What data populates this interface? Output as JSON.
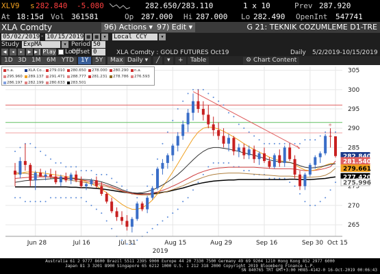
{
  "ticker": {
    "symbol": "XLV9",
    "last_prefix": "s",
    "last": "282.840",
    "change": "-5.080",
    "bid_ask": "282.650/283.110",
    "size": "1 x 10",
    "prev_label": "Prev",
    "prev": "287.920",
    "time_label": "At",
    "time": "18:15d",
    "vol_label": "Vol",
    "vol": "361581",
    "open_label": "Op",
    "open": "287.000",
    "high_label": "Hi",
    "high": "287.000",
    "low_label": "Lo",
    "low": "282.490",
    "oi_label": "OpenInt",
    "oi": "547741"
  },
  "titlebar": {
    "security": "XLA Comdty",
    "actions_label": "Actions",
    "actions_num": "96)",
    "edit_label": "Edit",
    "edit_num": "97)",
    "screen_title": "G 21: TEKNIK COZUMLEME D1-TRE"
  },
  "controls": {
    "start_date": "05/02/2019",
    "end_date": "10/15/2019",
    "currency": "Local CCY",
    "study_label": "Study",
    "study_value": "ExpMA",
    "period_label": "Period",
    "period_value": "50",
    "offset_label": "Offset",
    "offset_value": "0",
    "play_label": "Play",
    "loop_label": "Loop",
    "subtitle": "XLA Comdty : GOLD FUTURES    Oct19",
    "frequency": "Daily",
    "date_range": "5/2/2019-10/15/2019"
  },
  "range_buttons": [
    "1D",
    "3D",
    "1M",
    "6M",
    "YTD",
    "1Y",
    "5Y",
    "Max"
  ],
  "range_selected": "1Y",
  "period_select": "Daily",
  "table_label": "Table",
  "chart_content_label": "Chart Content",
  "legend": [
    {
      "text": "n.a.",
      "color": "#d03030"
    },
    {
      "text": "XLA Co...",
      "color": "#1a3a8a"
    },
    {
      "text": "279.010",
      "color": "#d03030"
    },
    {
      "text": "280.650",
      "color": "#d03030"
    },
    {
      "text": "278.000",
      "color": "#d03030"
    },
    {
      "text": "280.290",
      "color": "#d03030"
    },
    {
      "text": "n.a.",
      "color": "#d03030"
    },
    {
      "text": "295.960",
      "color": "#e08080"
    },
    {
      "text": "289.137",
      "color": "#f0a020"
    },
    {
      "text": "291.471",
      "color": "#e08080"
    },
    {
      "text": "288.777",
      "color": "#e08080"
    },
    {
      "text": "281.231",
      "color": "#d03030"
    },
    {
      "text": "278.786",
      "color": "#8a6a20"
    },
    {
      "text": "276.593",
      "color": "#e08080"
    },
    {
      "text": "286.197",
      "color": "#80a0e0"
    },
    {
      "text": "282.199",
      "color": "#e08080"
    },
    {
      "text": "280.633",
      "color": "#e08080"
    },
    {
      "text": "283.501",
      "color": "#000000"
    }
  ],
  "chart_data": {
    "type": "line",
    "title": "",
    "xlabel": "",
    "ylabel": "",
    "ylim": [
      262,
      306
    ],
    "y_ticks": [
      265,
      270,
      275,
      280,
      285,
      290,
      295,
      300,
      305
    ],
    "x_ticks": [
      "Jun 28",
      "Jul 16",
      "Jul 31",
      "Aug 15",
      "Aug 29",
      "Sep 16",
      "Sep 30",
      "Oct 15"
    ],
    "year_label": "2019",
    "right_labels": [
      {
        "value": 282.84,
        "text": "282.840",
        "bg": "#1a3a8a",
        "fg": "#ffffff"
      },
      {
        "value": 281.54,
        "text": "281.540",
        "bg": "#e06060",
        "fg": "#ffffff"
      },
      {
        "value": 279.661,
        "text": "279.661",
        "bg": "#f0a020",
        "fg": "#000000"
      },
      {
        "value": 277.42,
        "text": "277.420",
        "bg": "#000000",
        "fg": "#ffffff"
      },
      {
        "value": 275.996,
        "text": "275.996",
        "bg": "#ffffff",
        "fg": "#555555"
      }
    ],
    "hlines": [
      {
        "name": "red",
        "value": 296.0,
        "color": "#e06060"
      },
      {
        "name": "green",
        "value": 291.5,
        "color": "#60c060"
      },
      {
        "name": "pink",
        "value": 288.8,
        "color": "#f0a0a0"
      }
    ],
    "candles": [
      [
        279.0,
        281.0,
        275.0,
        278.0
      ],
      [
        278.0,
        282.5,
        277.0,
        281.5
      ],
      [
        281.5,
        286.0,
        279.0,
        280.5
      ],
      [
        280.5,
        281.0,
        275.0,
        276.5
      ],
      [
        276.5,
        279.0,
        274.0,
        278.5
      ],
      [
        278.5,
        279.5,
        277.5,
        277.5
      ],
      [
        277.5,
        279.0,
        276.5,
        278.0
      ],
      [
        278.0,
        279.5,
        277.0,
        277.5
      ],
      [
        277.5,
        279.0,
        275.5,
        276.0
      ],
      [
        276.0,
        278.0,
        275.0,
        277.5
      ],
      [
        277.5,
        278.5,
        276.0,
        276.5
      ],
      [
        276.5,
        278.5,
        275.5,
        278.0
      ],
      [
        278.0,
        279.0,
        276.0,
        276.5
      ],
      [
        276.5,
        277.5,
        274.5,
        275.0
      ],
      [
        275.0,
        276.0,
        274.0,
        275.5
      ],
      [
        275.5,
        277.0,
        275.0,
        276.5
      ],
      [
        276.5,
        277.5,
        274.5,
        275.0
      ],
      [
        275.0,
        276.0,
        272.5,
        273.0
      ],
      [
        273.0,
        273.5,
        270.5,
        271.0
      ],
      [
        271.0,
        272.0,
        268.0,
        268.5
      ],
      [
        268.5,
        269.5,
        266.0,
        267.0
      ],
      [
        267.0,
        268.5,
        265.0,
        266.0
      ],
      [
        266.0,
        267.5,
        263.5,
        264.5
      ],
      [
        264.5,
        267.0,
        263.0,
        266.5
      ],
      [
        266.5,
        271.0,
        266.0,
        270.5
      ],
      [
        270.5,
        271.0,
        268.5,
        269.0
      ],
      [
        269.0,
        272.5,
        268.0,
        272.0
      ],
      [
        272.0,
        275.0,
        271.5,
        274.5
      ],
      [
        274.5,
        280.0,
        274.0,
        279.5
      ],
      [
        279.5,
        282.0,
        278.0,
        281.0
      ],
      [
        281.0,
        283.5,
        279.5,
        283.0
      ],
      [
        283.0,
        286.0,
        281.5,
        285.5
      ],
      [
        285.5,
        289.0,
        284.0,
        288.0
      ],
      [
        288.0,
        292.0,
        287.0,
        291.0
      ],
      [
        291.0,
        295.0,
        289.0,
        294.0
      ],
      [
        294.0,
        299.0,
        292.0,
        297.0
      ],
      [
        297.0,
        300.0,
        294.0,
        295.0
      ],
      [
        295.0,
        297.0,
        292.0,
        293.5
      ],
      [
        293.5,
        296.0,
        290.0,
        291.0
      ],
      [
        291.0,
        293.0,
        288.0,
        289.5
      ],
      [
        289.5,
        291.5,
        287.0,
        288.0
      ],
      [
        288.0,
        290.0,
        285.0,
        286.0
      ],
      [
        286.0,
        288.5,
        284.0,
        287.5
      ],
      [
        287.5,
        288.0,
        283.0,
        284.0
      ],
      [
        284.0,
        286.0,
        282.5,
        285.0
      ],
      [
        285.0,
        286.0,
        282.0,
        283.0
      ],
      [
        283.0,
        285.5,
        282.0,
        284.5
      ],
      [
        284.5,
        285.5,
        281.0,
        282.0
      ],
      [
        282.0,
        284.0,
        280.5,
        283.5
      ],
      [
        283.5,
        285.0,
        281.0,
        281.5
      ],
      [
        281.5,
        282.5,
        279.5,
        280.0
      ],
      [
        280.0,
        283.5,
        279.5,
        283.0
      ],
      [
        283.0,
        284.5,
        280.0,
        281.0
      ],
      [
        281.0,
        285.5,
        280.0,
        285.0
      ],
      [
        285.0,
        286.0,
        281.5,
        282.0
      ],
      [
        282.0,
        283.0,
        277.0,
        278.0
      ],
      [
        278.0,
        279.0,
        274.0,
        275.0
      ],
      [
        275.0,
        278.5,
        274.0,
        278.0
      ],
      [
        278.0,
        281.0,
        277.5,
        280.5
      ],
      [
        280.5,
        283.0,
        279.5,
        282.5
      ],
      [
        282.5,
        284.0,
        281.0,
        283.5
      ],
      [
        283.5,
        288.5,
        283.0,
        288.0
      ],
      [
        288.0,
        290.0,
        285.0,
        287.9
      ],
      [
        287.9,
        287.9,
        282.4,
        282.8
      ]
    ],
    "sma_dark": [
      276.0,
      276.2,
      276.4,
      276.5,
      276.6,
      276.7,
      276.8,
      276.9,
      277.0,
      277.0,
      277.0,
      277.0,
      276.9,
      276.8,
      276.7,
      276.6,
      276.4,
      276.1,
      275.7,
      275.2,
      274.7,
      274.1,
      273.6,
      273.3,
      273.2,
      273.3,
      273.6,
      274.0,
      274.6,
      275.3,
      276.1,
      277.0,
      278.0,
      279.2,
      280.5,
      281.8,
      283.0,
      284.0,
      284.7,
      285.0,
      285.0,
      284.8,
      284.6,
      284.3,
      284.0,
      283.6,
      283.3,
      283.0,
      282.6,
      282.2,
      281.8,
      281.5,
      281.3,
      281.2,
      281.1,
      280.8,
      280.3,
      279.9,
      279.7,
      279.8,
      280.0,
      280.3,
      280.6,
      280.8
    ],
    "sma_orange": [
      278.0,
      278.3,
      278.6,
      278.7,
      278.6,
      278.5,
      278.3,
      278.1,
      277.9,
      277.7,
      277.5,
      277.3,
      277.0,
      276.6,
      276.1,
      275.6,
      275.0,
      274.2,
      273.3,
      272.3,
      271.3,
      270.3,
      269.5,
      269.0,
      269.0,
      269.4,
      270.2,
      271.4,
      273.0,
      274.8,
      276.7,
      278.7,
      280.8,
      283.0,
      285.2,
      287.3,
      289.0,
      290.0,
      290.3,
      290.2,
      289.8,
      289.2,
      288.5,
      287.7,
      286.9,
      286.0,
      285.2,
      284.5,
      283.8,
      283.2,
      282.5,
      282.0,
      281.6,
      281.4,
      281.2,
      280.6,
      279.8,
      279.2,
      279.0,
      279.2,
      279.7,
      280.4,
      280.9,
      280.8
    ],
    "sma_red": [
      277.0,
      277.1,
      277.2,
      277.3,
      277.4,
      277.4,
      277.4,
      277.4,
      277.3,
      277.2,
      277.1,
      277.0,
      276.8,
      276.6,
      276.4,
      276.2,
      275.9,
      275.6,
      275.2,
      274.8,
      274.3,
      273.8,
      273.4,
      273.1,
      272.9,
      272.9,
      273.0,
      273.2,
      273.5,
      273.9,
      274.4,
      275.0,
      275.6,
      276.3,
      277.0,
      277.7,
      278.3,
      278.8,
      279.2,
      279.5,
      279.7,
      279.8,
      279.9,
      279.9,
      279.9,
      279.9,
      279.9,
      279.9,
      279.8,
      279.7,
      279.6,
      279.5,
      279.5,
      279.5,
      279.5,
      279.4,
      279.2,
      279.0,
      279.0,
      279.1,
      279.3,
      279.6,
      280.0,
      281.5
    ],
    "sma_tan": [
      278.5,
      278.4,
      278.3,
      278.1,
      277.9,
      277.7,
      277.5,
      277.3,
      277.1,
      276.9,
      276.7,
      276.5,
      276.3,
      276.1,
      275.9,
      275.7,
      275.5,
      275.2,
      274.9,
      274.5,
      274.1,
      273.7,
      273.3,
      273.0,
      272.8,
      272.7,
      272.7,
      272.8,
      273.0,
      273.3,
      273.7,
      274.1,
      274.6,
      275.1,
      275.7,
      276.3,
      276.8,
      277.3,
      277.7,
      278.0,
      278.2,
      278.3,
      278.4,
      278.4,
      278.4,
      278.3,
      278.2,
      278.1,
      278.0,
      277.9,
      277.8,
      277.7,
      277.6,
      277.6,
      277.6,
      277.5,
      277.4,
      277.3,
      277.3,
      277.4,
      277.5,
      277.8,
      278.5,
      279.661
    ],
    "ema_black": [
      274.8,
      274.8,
      274.8,
      274.8,
      274.8,
      274.8,
      274.8,
      274.8,
      274.8,
      274.8,
      274.8,
      274.7,
      274.7,
      274.6,
      274.6,
      274.5,
      274.4,
      274.3,
      274.1,
      273.9,
      273.7,
      273.5,
      273.3,
      273.1,
      273.0,
      273.0,
      273.0,
      273.1,
      273.2,
      273.4,
      273.6,
      273.9,
      274.2,
      274.5,
      274.9,
      275.3,
      275.6,
      275.9,
      276.1,
      276.3,
      276.4,
      276.5,
      276.6,
      276.6,
      276.7,
      276.7,
      276.7,
      276.7,
      276.7,
      276.7,
      276.7,
      276.7,
      276.7,
      276.7,
      276.8,
      276.8,
      276.7,
      276.7,
      276.7,
      276.8,
      276.9,
      277.0,
      277.2,
      277.4
    ],
    "bb_upper": [
      284,
      285,
      286,
      286,
      285,
      284,
      283,
      282,
      281,
      281,
      280,
      280,
      280,
      279,
      279,
      279,
      278,
      278,
      278,
      277,
      276,
      275,
      274,
      273,
      272,
      273,
      275,
      278,
      282,
      286,
      289,
      292,
      295,
      297,
      299,
      300,
      300,
      300,
      299,
      298,
      297,
      296,
      294,
      293,
      291,
      290,
      289,
      288,
      287,
      286,
      286,
      286,
      286,
      286,
      286,
      286,
      286,
      287,
      287,
      287,
      288,
      289,
      289,
      289
    ],
    "bb_lower": [
      272,
      272,
      271,
      271,
      271,
      271,
      271,
      272,
      272,
      272,
      272,
      272,
      272,
      272,
      271,
      270,
      269,
      268,
      266,
      264,
      262,
      261,
      260,
      260,
      261,
      262,
      263,
      264,
      265,
      266,
      267,
      268,
      269,
      271,
      272,
      274,
      276,
      278,
      280,
      281,
      281,
      281,
      281,
      280,
      280,
      279,
      279,
      278,
      278,
      278,
      277,
      277,
      277,
      277,
      276,
      275,
      273,
      271,
      270,
      270,
      271,
      272,
      274,
      276
    ],
    "trendline": {
      "start_index": 35,
      "start_value": 299.5,
      "end_index": 56,
      "end_value": 284.8
    },
    "marker": {
      "index": 62,
      "value": 290.0
    }
  },
  "footer": {
    "line1": "Australia 61 2 9777 8600 Brazil 5511 2395 9000 Europe 44 20 7330 7500 Germany 49 69 9204 1210 Hong Kong 852 2977 6000",
    "line2": "Japan 81 3 3201 8900        Singapore 65 6212 1000        U.S. 1 212 318 2000        Copyright 2019 Bloomberg Finance L.P.",
    "line3": "SN 840765 TRT  GMT+3:00 H085-4142-0 16-Oct-2019 00:06:43"
  }
}
